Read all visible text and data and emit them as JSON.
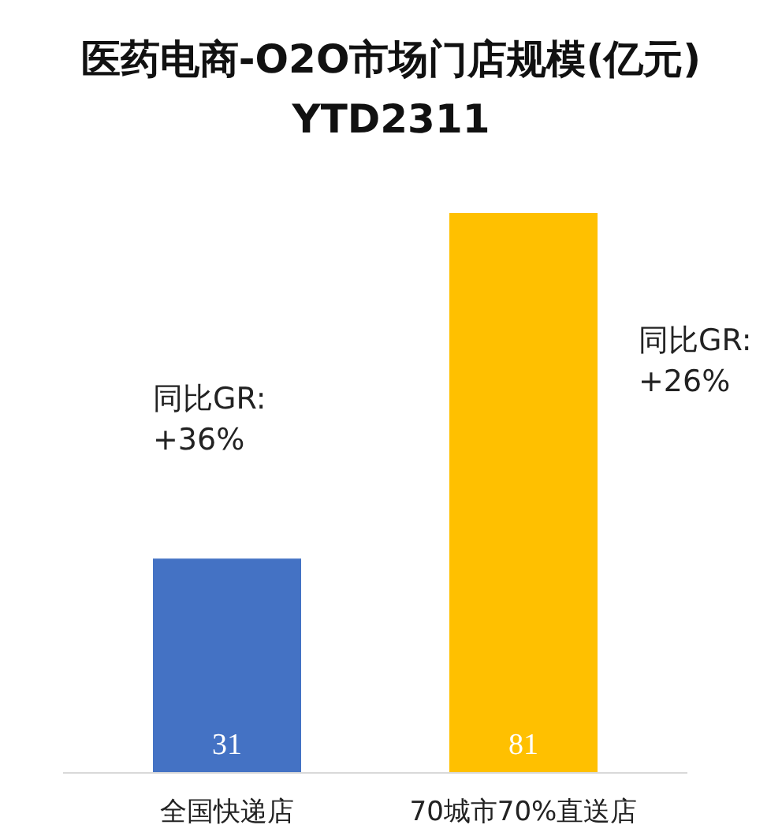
{
  "chart_data": {
    "type": "bar",
    "title": "医药电商-O2O市场门店规模(亿元)",
    "subtitle": "YTD2311",
    "categories": [
      "全国快递店",
      "70城市70%直送店"
    ],
    "values": [
      31,
      81
    ],
    "colors": [
      "#4472c4",
      "#ffc000"
    ],
    "data_labels": true,
    "annotations": [
      "同比GR: +36%",
      "同比GR: +26%"
    ]
  }
}
